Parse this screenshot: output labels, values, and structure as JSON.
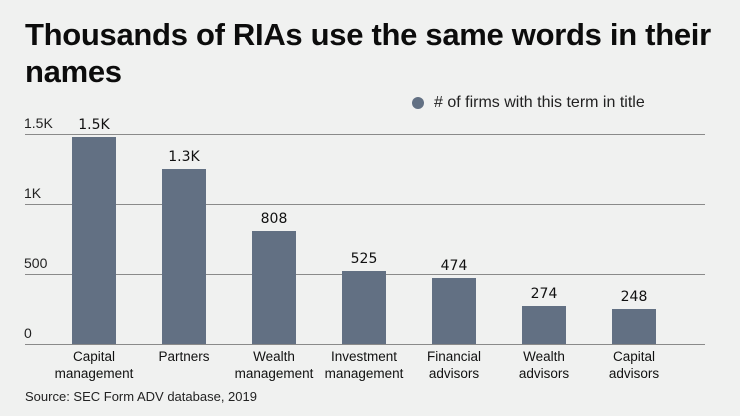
{
  "chart_data": {
    "type": "bar",
    "title": "Thousands of RIAs use the same words in their names",
    "categories": [
      "Capital management",
      "Partners",
      "Wealth management",
      "Investment management",
      "Financial advisors",
      "Wealth advisors",
      "Capital advisors"
    ],
    "category_lines": [
      [
        "Capital",
        "management"
      ],
      [
        "Partners",
        ""
      ],
      [
        "Wealth",
        "management"
      ],
      [
        "Investment",
        "management"
      ],
      [
        "Financial",
        "advisors"
      ],
      [
        "Wealth",
        "advisors"
      ],
      [
        "Capital",
        "advisors"
      ]
    ],
    "series": [
      {
        "name": "# of firms with this term in title",
        "values": [
          1480,
          1250,
          808,
          525,
          474,
          274,
          248
        ],
        "labels": [
          "1.5K",
          "1.3K",
          "808",
          "525",
          "474",
          "274",
          "248"
        ],
        "color": "#627083"
      }
    ],
    "xlabel": "",
    "ylabel": "",
    "ylim": [
      0,
      1500
    ],
    "yticks": [
      {
        "value": 0,
        "label": "0"
      },
      {
        "value": 500,
        "label": "500"
      },
      {
        "value": 1000,
        "label": "1K"
      },
      {
        "value": 1500,
        "label": "1.5K"
      }
    ],
    "grid": true,
    "legend_position": "top-right",
    "source": "Source: SEC Form ADV database, 2019"
  }
}
